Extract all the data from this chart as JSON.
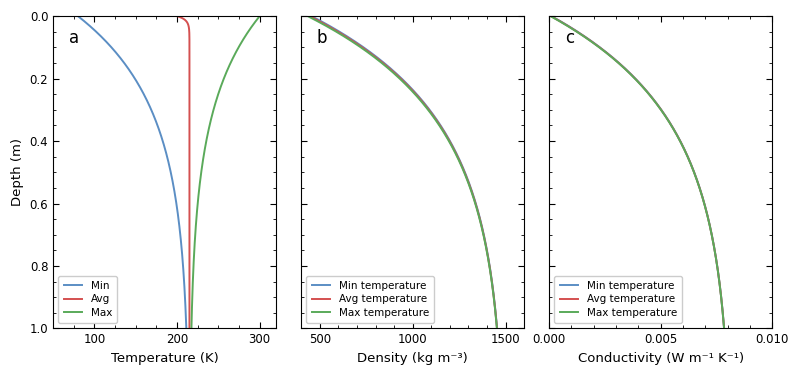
{
  "fig_width": 8.0,
  "fig_height": 3.76,
  "dpi": 100,
  "background_color": "#ffffff",
  "panel_a": {
    "label": "a",
    "xlabel": "Temperature (K)",
    "ylabel": "Depth (m)",
    "xlim": [
      50,
      320
    ],
    "ylim": [
      1.0,
      0.0
    ],
    "xticks": [
      100,
      200,
      300
    ],
    "yticks": [
      0.0,
      0.2,
      0.4,
      0.6,
      0.8,
      1.0
    ],
    "legend_labels": [
      "Min",
      "Avg",
      "Max"
    ],
    "colors": [
      "#5b8ec4",
      "#d45050",
      "#5aaa5a"
    ],
    "T_min_surf": 80.0,
    "T_avg_surf": 200.0,
    "T_max_surf": 300.0,
    "T_deep": 215.0,
    "skin_min": 0.28,
    "skin_avg": 0.012,
    "skin_max": 0.28
  },
  "panel_b": {
    "label": "b",
    "xlabel": "Density (kg m⁻³)",
    "ylabel": "",
    "xlim": [
      400,
      1600
    ],
    "ylim": [
      1.0,
      0.0
    ],
    "xticks": [
      500,
      1000,
      1500
    ],
    "yticks": [
      0.0,
      0.2,
      0.4,
      0.6,
      0.8,
      1.0
    ],
    "legend_labels": [
      "Min temperature",
      "Avg temperature",
      "Max temperature"
    ],
    "colors": [
      "#5b8ec4",
      "#d45050",
      "#5aaa5a"
    ],
    "rho_surf_min": 455.0,
    "rho_surf_avg": 445.0,
    "rho_surf_max": 435.0,
    "rho_deep": 1500.0,
    "scale_rho": 0.32
  },
  "panel_c": {
    "label": "c",
    "xlabel": "Conductivity (W m⁻¹ K⁻¹)",
    "ylabel": "",
    "xlim": [
      0.0,
      0.01
    ],
    "ylim": [
      1.0,
      0.0
    ],
    "xticks": [
      0.0,
      0.005,
      0.01
    ],
    "yticks": [
      0.0,
      0.2,
      0.4,
      0.6,
      0.8,
      1.0
    ],
    "legend_labels": [
      "Min temperature",
      "Avg temperature",
      "Max temperature"
    ],
    "colors": [
      "#5b8ec4",
      "#d45050",
      "#5aaa5a"
    ],
    "k_surf_min": 0.0001,
    "k_surf_avg": 8e-05,
    "k_surf_max": 6e-05,
    "k_deep": 0.0082,
    "scale_k": 0.32
  }
}
